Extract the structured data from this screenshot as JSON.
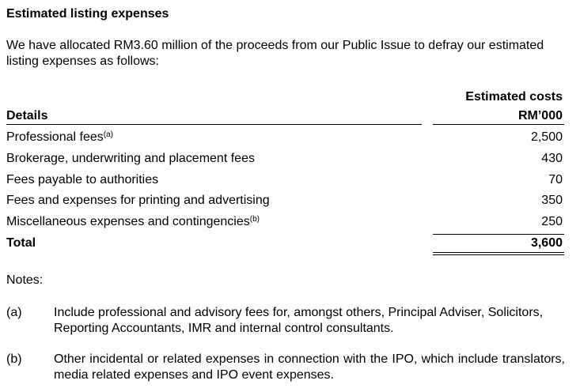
{
  "title": "Estimated listing expenses",
  "intro": "We have allocated RM3.60 million of the proceeds from our Public Issue to defray our estimated listing expenses as follows:",
  "table": {
    "header": {
      "details": "Details",
      "cost_title": "Estimated costs",
      "cost_unit": "RM’000"
    },
    "rows": [
      {
        "label": "Professional fees",
        "note": "(a)",
        "cost": "2,500"
      },
      {
        "label": "Brokerage, underwriting and placement fees",
        "cost": "430"
      },
      {
        "label": "Fees payable to authorities",
        "cost": "70"
      },
      {
        "label": "Fees and expenses for printing and advertising",
        "cost": "350"
      },
      {
        "label": "Miscellaneous expenses and contingencies",
        "note": "(b)",
        "cost": "250"
      }
    ],
    "total": {
      "label": "Total",
      "cost": "3,600"
    }
  },
  "notes": {
    "heading": "Notes:",
    "items": [
      {
        "marker": "(a)",
        "text": "Include professional and advisory fees for, amongst others, Principal Adviser, Solicitors, Reporting Accountants, IMR and internal control consultants."
      },
      {
        "marker": "(b)",
        "text": "Other incidental or related expenses in connection with the IPO, which include translators, media related expenses and IPO event expenses."
      }
    ]
  }
}
